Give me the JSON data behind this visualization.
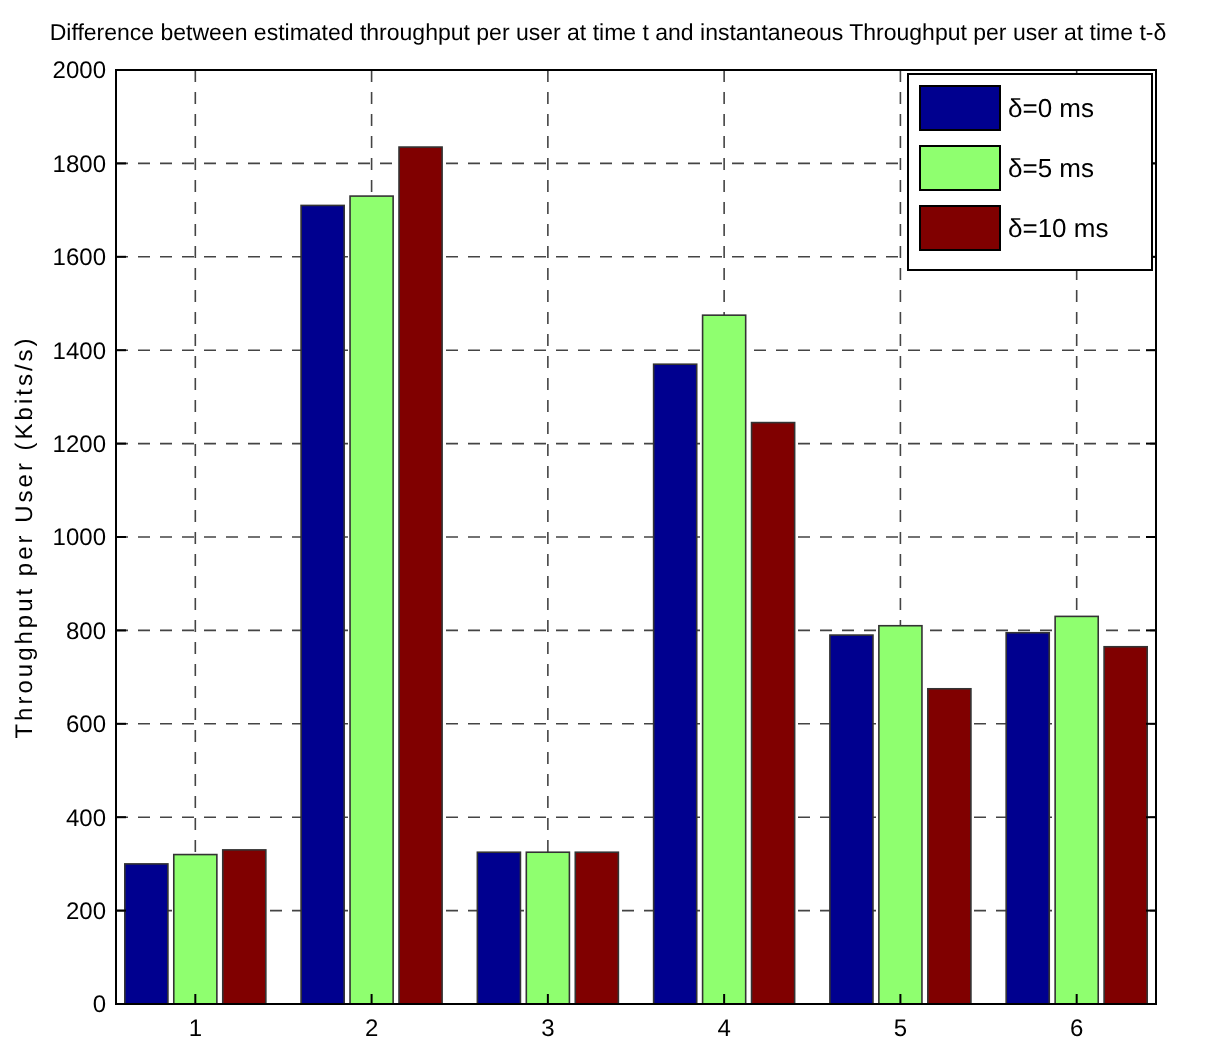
{
  "chart_data": {
    "type": "bar",
    "title": "Difference between estimated throughput per user at time t and instantaneous Throughput per user at time t-δ",
    "ylabel": "Throughput per User (Kbits/s)",
    "categories": [
      "1",
      "2",
      "3",
      "4",
      "5",
      "6"
    ],
    "series": [
      {
        "name": "δ=0 ms",
        "color": "#00008f",
        "values": [
          300,
          1710,
          325,
          1370,
          790,
          795
        ]
      },
      {
        "name": "δ=5 ms",
        "color": "#8fff6f",
        "values": [
          320,
          1730,
          325,
          1475,
          810,
          830
        ]
      },
      {
        "name": "δ=10 ms",
        "color": "#800000",
        "values": [
          330,
          1835,
          325,
          1245,
          675,
          765
        ]
      }
    ],
    "ylim": [
      0,
      2000
    ],
    "yticks": [
      0,
      200,
      400,
      600,
      800,
      1000,
      1200,
      1400,
      1600,
      1800,
      2000
    ],
    "grid": true,
    "legend": "top right"
  }
}
